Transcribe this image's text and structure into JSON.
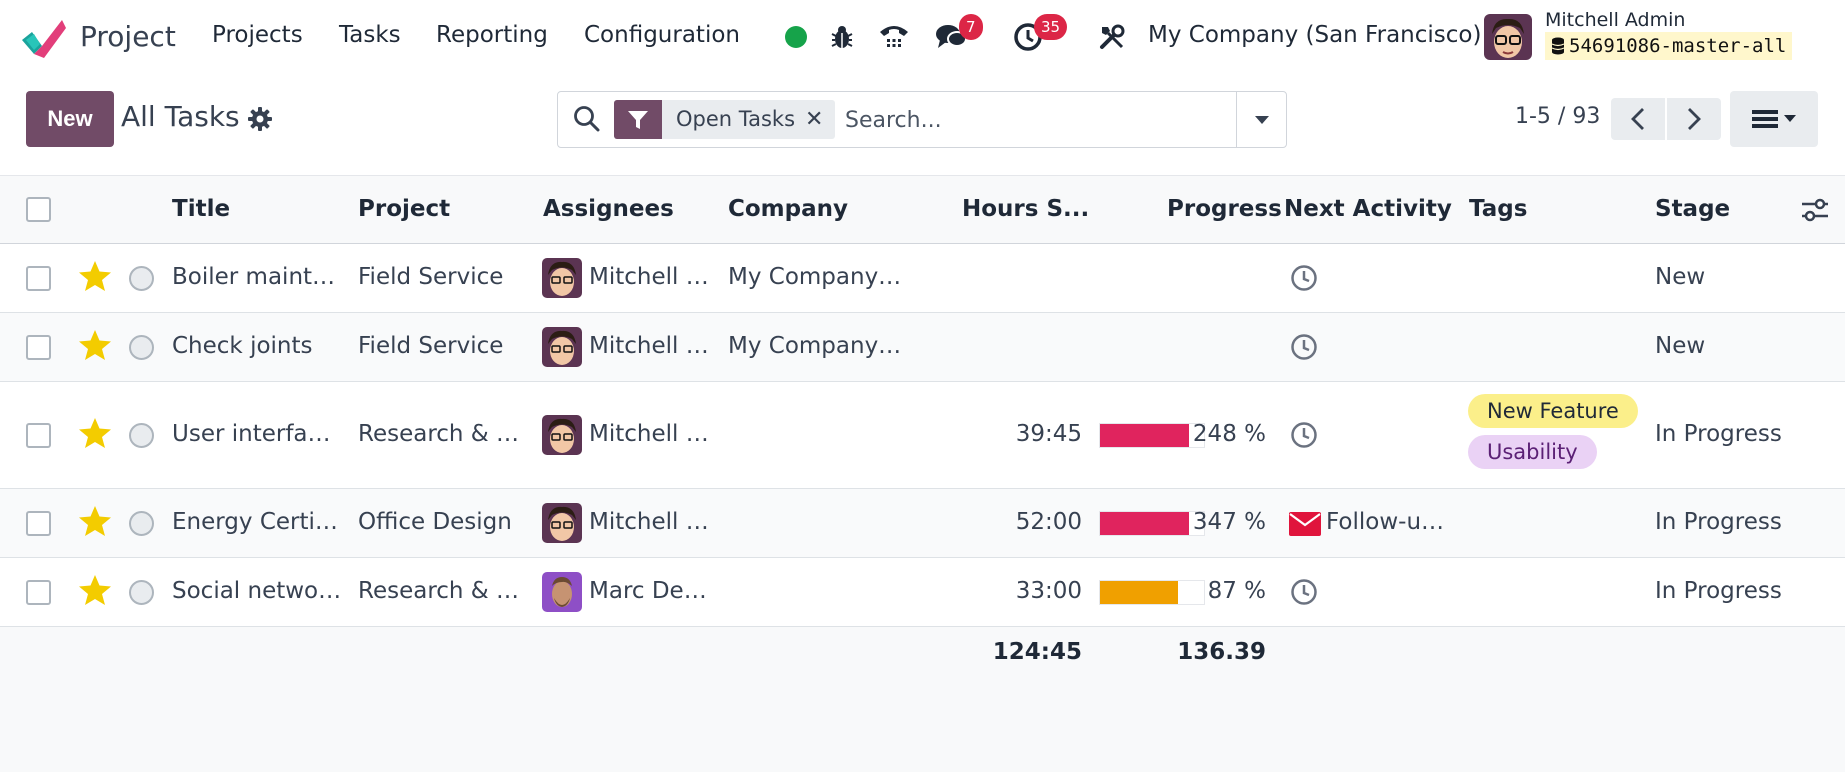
{
  "navbar": {
    "app_name": "Project",
    "menu": [
      "Projects",
      "Tasks",
      "Reporting",
      "Configuration"
    ],
    "messages_count": "7",
    "activities_count": "35",
    "company": "My Company (San Francisco)",
    "user_name": "Mitchell Admin",
    "database": "54691086-master-all"
  },
  "control_panel": {
    "new_label": "New",
    "title": "All Tasks",
    "facet_label": "Open Tasks",
    "search_placeholder": "Search...",
    "pager": "1-5 / 93"
  },
  "table": {
    "columns": [
      "Title",
      "Project",
      "Assignees",
      "Company",
      "Hours S...",
      "Progress",
      "Next Activity",
      "Tags",
      "Stage"
    ],
    "rows": [
      {
        "title": "Boiler maint…",
        "project": "Field Service",
        "assignee": "Mitchell …",
        "company": "My Company…",
        "hours": "",
        "progress": "",
        "progress_value": 0,
        "next_activity": "",
        "tags": [],
        "stage": "New"
      },
      {
        "title": "Check joints",
        "project": "Field Service",
        "assignee": "Mitchell …",
        "company": "My Company…",
        "hours": "",
        "progress": "",
        "progress_value": 0,
        "next_activity": "",
        "tags": [],
        "stage": "New"
      },
      {
        "title": "User interfac…",
        "project": "Research & …",
        "assignee": "Mitchell …",
        "company": "",
        "hours": "39:45",
        "progress": "248 %",
        "progress_value": 248,
        "next_activity": "",
        "tags": [
          "New Feature",
          "Usability"
        ],
        "stage": "In Progress"
      },
      {
        "title": "Energy Certi…",
        "project": "Office Design",
        "assignee": "Mitchell …",
        "company": "",
        "hours": "52:00",
        "progress": "347 %",
        "progress_value": 347,
        "next_activity": "Follow-u…",
        "tags": [],
        "stage": "In Progress"
      },
      {
        "title": "Social netwo…",
        "project": "Research & …",
        "assignee": "Marc Demo",
        "company": "",
        "hours": "33:00",
        "progress": "87 %",
        "progress_value": 87,
        "next_activity": "",
        "tags": [],
        "stage": "In Progress"
      }
    ],
    "totals": {
      "hours": "124:45",
      "progress": "136.39"
    }
  },
  "colors": {
    "brand": "#714b67",
    "progress_over": "#e0245e",
    "progress_under": "#f0a000",
    "tag_new_feature": "#fbef8a",
    "tag_usability": "#ead2f5",
    "status_online": "#16a34a",
    "badge": "#dc2646",
    "star": "#f3cc00"
  },
  "icons": [
    "search-icon",
    "filter-icon",
    "close-icon",
    "caret-down-icon",
    "chevron-left-icon",
    "chevron-right-icon",
    "list-view-icon",
    "gear-icon",
    "bug-icon",
    "phone-icon",
    "chat-icon",
    "clock-icon",
    "tools-icon",
    "database-icon",
    "star-icon",
    "envelope-icon",
    "optional-columns-icon"
  ]
}
